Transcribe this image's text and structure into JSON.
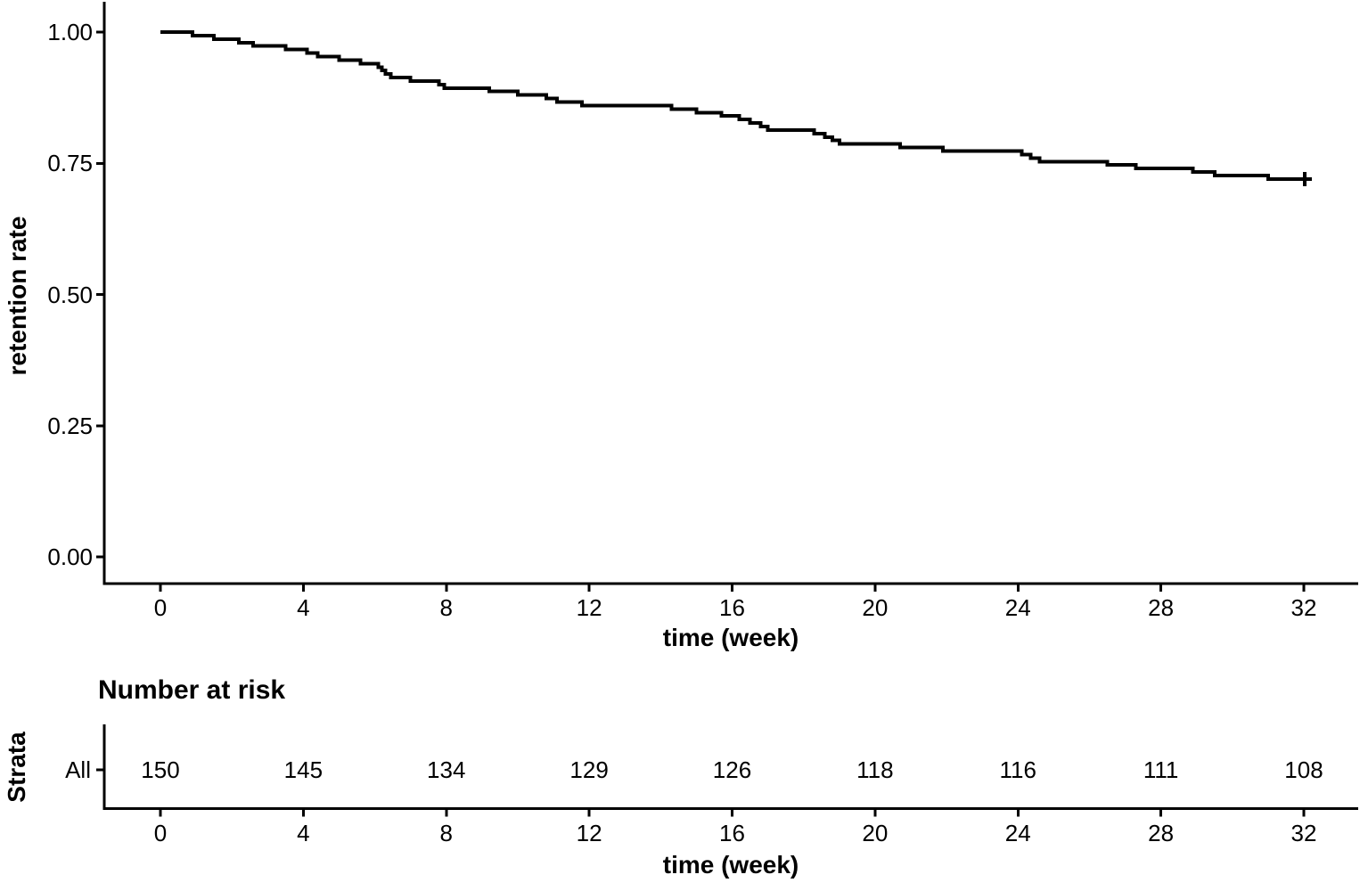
{
  "colors": {
    "curve": "#000000",
    "axis": "#000000",
    "text": "#000000",
    "background": "#ffffff"
  },
  "chart_data": {
    "type": "line",
    "subtype": "kaplan-meier-step",
    "title": "",
    "xlabel": "time (week)",
    "ylabel": "retention rate",
    "xlim": [
      0,
      32
    ],
    "ylim": [
      0.0,
      1.0
    ],
    "grid": false,
    "legend": false,
    "x_ticks": [
      0,
      4,
      8,
      12,
      16,
      20,
      24,
      28,
      32
    ],
    "y_ticks": [
      {
        "label": "1.00",
        "value": 1.0
      },
      {
        "label": "0.75",
        "value": 0.75
      },
      {
        "label": "0.50",
        "value": 0.5
      },
      {
        "label": "0.25",
        "value": 0.25
      },
      {
        "label": "0.00",
        "value": 0.0
      }
    ],
    "series": [
      {
        "name": "All",
        "color": "#000000",
        "start": {
          "t": 0,
          "s": 1.0
        },
        "steps": [
          {
            "t": 0.9,
            "s": 0.9933
          },
          {
            "t": 1.5,
            "s": 0.9867
          },
          {
            "t": 2.2,
            "s": 0.98
          },
          {
            "t": 2.6,
            "s": 0.9733
          },
          {
            "t": 3.5,
            "s": 0.9667
          },
          {
            "t": 4.1,
            "s": 0.96
          },
          {
            "t": 4.4,
            "s": 0.9533
          },
          {
            "t": 5.0,
            "s": 0.9467
          },
          {
            "t": 5.6,
            "s": 0.94
          },
          {
            "t": 6.1,
            "s": 0.9333
          },
          {
            "t": 6.2,
            "s": 0.9267
          },
          {
            "t": 6.3,
            "s": 0.92
          },
          {
            "t": 6.45,
            "s": 0.9133
          },
          {
            "t": 7.0,
            "s": 0.9067
          },
          {
            "t": 7.8,
            "s": 0.9
          },
          {
            "t": 7.95,
            "s": 0.8933
          },
          {
            "t": 9.2,
            "s": 0.8867
          },
          {
            "t": 10.0,
            "s": 0.88
          },
          {
            "t": 10.8,
            "s": 0.8733
          },
          {
            "t": 11.1,
            "s": 0.8667
          },
          {
            "t": 11.8,
            "s": 0.86
          },
          {
            "t": 14.3,
            "s": 0.8533
          },
          {
            "t": 15.0,
            "s": 0.8467
          },
          {
            "t": 15.7,
            "s": 0.84
          },
          {
            "t": 16.2,
            "s": 0.8333
          },
          {
            "t": 16.5,
            "s": 0.8267
          },
          {
            "t": 16.8,
            "s": 0.82
          },
          {
            "t": 17.0,
            "s": 0.8133
          },
          {
            "t": 18.3,
            "s": 0.8067
          },
          {
            "t": 18.6,
            "s": 0.8
          },
          {
            "t": 18.8,
            "s": 0.7933
          },
          {
            "t": 19.0,
            "s": 0.7867
          },
          {
            "t": 20.7,
            "s": 0.78
          },
          {
            "t": 21.9,
            "s": 0.7733
          },
          {
            "t": 24.1,
            "s": 0.7667
          },
          {
            "t": 24.35,
            "s": 0.76
          },
          {
            "t": 24.6,
            "s": 0.7533
          },
          {
            "t": 26.5,
            "s": 0.7467
          },
          {
            "t": 27.3,
            "s": 0.74
          },
          {
            "t": 28.9,
            "s": 0.7333
          },
          {
            "t": 29.5,
            "s": 0.7267
          },
          {
            "t": 31.0,
            "s": 0.72
          }
        ],
        "end_t": 32,
        "final_s": 0.72,
        "censor_marks": [
          {
            "t": 32,
            "s": 0.72
          }
        ]
      }
    ],
    "risk_table": {
      "title": "Number at risk",
      "strata_axis_label": "Strata",
      "row_label": "All",
      "times": [
        0,
        4,
        8,
        12,
        16,
        20,
        24,
        28,
        32
      ],
      "counts": [
        150,
        145,
        134,
        129,
        126,
        118,
        116,
        111,
        108
      ],
      "xlabel": "time (week)"
    }
  }
}
